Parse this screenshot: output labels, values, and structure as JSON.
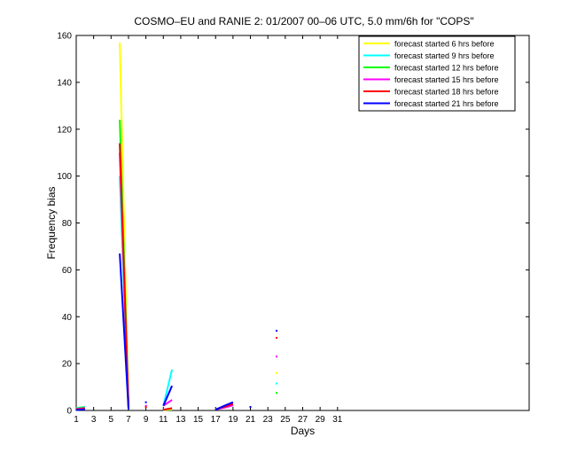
{
  "chart_data": {
    "type": "line",
    "title": "COSMO–EU and RANIE 2: 01/2007 00–06 UTC, 5.0 mm/6h for \"COPS\"",
    "xlabel": "Days",
    "ylabel": "Frequency bias",
    "xlim": [
      1,
      53
    ],
    "ylim": [
      0,
      160
    ],
    "xticks": [
      1,
      3,
      5,
      7,
      9,
      11,
      13,
      15,
      17,
      19,
      21,
      23,
      25,
      27,
      29,
      31
    ],
    "yticks": [
      0,
      20,
      40,
      60,
      80,
      100,
      120,
      140,
      160
    ],
    "legend_position": "top-right",
    "grid": false,
    "series": [
      {
        "name": "forecast started 6 hrs before",
        "color": "#ffff00",
        "segments": [
          [
            [
              1,
              1.0
            ],
            [
              2,
              1.6
            ]
          ],
          [
            [
              6,
              157
            ],
            [
              7,
              1.0
            ]
          ],
          [
            [
              11,
              0.2
            ],
            [
              12,
              0.4
            ]
          ],
          [
            [
              17,
              0.5
            ],
            [
              18,
              1.6
            ],
            [
              19,
              2.6
            ]
          ]
        ],
        "points": [
          [
            24,
            16
          ]
        ]
      },
      {
        "name": "forecast started 9 hrs before",
        "color": "#00ffff",
        "segments": [
          [
            [
              1,
              1.0
            ],
            [
              2,
              1.5
            ]
          ],
          [
            [
              6,
              100
            ],
            [
              7,
              1.0
            ]
          ],
          [
            [
              11,
              2.0
            ],
            [
              12,
              17.5
            ]
          ],
          [
            [
              17,
              0.5
            ],
            [
              18,
              1.8
            ],
            [
              19,
              3.0
            ]
          ]
        ],
        "points": [
          [
            24,
            11.5
          ]
        ]
      },
      {
        "name": "forecast started 12 hrs before",
        "color": "#00ff00",
        "segments": [
          [
            [
              1,
              0.8
            ],
            [
              2,
              1.2
            ]
          ],
          [
            [
              6,
              124
            ],
            [
              7,
              2.0
            ]
          ],
          [
            [
              11,
              0.3
            ],
            [
              12,
              0.8
            ]
          ],
          [
            [
              17,
              0.4
            ],
            [
              18,
              1.5
            ],
            [
              19,
              2.5
            ]
          ]
        ],
        "points": [
          [
            24,
            7.5
          ]
        ]
      },
      {
        "name": "forecast started 15 hrs before",
        "color": "#ff00ff",
        "segments": [
          [
            [
              1,
              0.6
            ],
            [
              2,
              1.0
            ]
          ],
          [
            [
              6,
              110
            ],
            [
              7,
              1.5
            ]
          ],
          [
            [
              11,
              2.0
            ],
            [
              12,
              4.5
            ]
          ],
          [
            [
              17,
              0.4
            ],
            [
              18,
              1.2
            ],
            [
              19,
              2.2
            ]
          ]
        ],
        "points": [
          [
            9,
            2.0
          ],
          [
            24,
            23
          ]
        ]
      },
      {
        "name": "forecast started 18 hrs before",
        "color": "#ff0000",
        "segments": [
          [
            [
              1,
              0.4
            ],
            [
              2,
              0.8
            ]
          ],
          [
            [
              6,
              114
            ],
            [
              7,
              1.0
            ]
          ],
          [
            [
              11,
              0.3
            ],
            [
              12,
              1.0
            ]
          ],
          [
            [
              17,
              0.5
            ],
            [
              18,
              1.6
            ],
            [
              19,
              2.8
            ]
          ]
        ],
        "points": [
          [
            9,
            1.5
          ],
          [
            24,
            31
          ]
        ]
      },
      {
        "name": "forecast started 21 hrs before",
        "color": "#0000ff",
        "segments": [
          [
            [
              1,
              0.2
            ],
            [
              2,
              0.5
            ]
          ],
          [
            [
              6,
              67
            ],
            [
              7,
              0.5
            ]
          ],
          [
            [
              11,
              2.0
            ],
            [
              12,
              10.5
            ]
          ],
          [
            [
              17,
              0.3
            ],
            [
              18,
              2.0
            ],
            [
              19,
              3.5
            ]
          ]
        ],
        "points": [
          [
            9,
            3.5
          ],
          [
            21,
            1.5
          ],
          [
            24,
            34
          ]
        ]
      }
    ]
  }
}
